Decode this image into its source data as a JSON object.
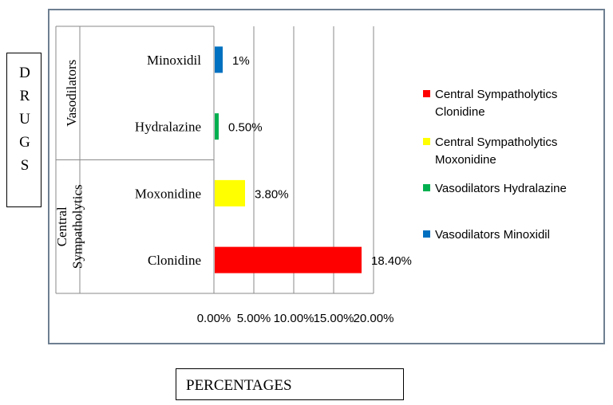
{
  "y_axis_title": "DRUGS",
  "x_axis_title": "PERCENTAGES",
  "chart_data": {
    "type": "bar",
    "orientation": "horizontal",
    "categories": [
      "Clonidine",
      "Moxonidine",
      "Hydralazine",
      "Minoxidil"
    ],
    "groups": [
      {
        "label": "Central Sympatholytics",
        "members": [
          "Clonidine",
          "Moxonidine"
        ]
      },
      {
        "label": "Vasodilators",
        "members": [
          "Hydralazine",
          "Minoxidil"
        ]
      }
    ],
    "values": [
      18.4,
      3.8,
      0.5,
      1
    ],
    "data_labels": [
      "18.40%",
      "3.80%",
      "0.50%",
      "1%"
    ],
    "colors": [
      "#ff0000",
      "#ffff00",
      "#00b050",
      "#0070c0"
    ],
    "xlim": [
      0,
      20
    ],
    "x_ticks": [
      0,
      5,
      10,
      15,
      20
    ],
    "x_tick_labels": [
      "0.00%",
      "5.00%",
      "10.00%",
      "15.00%",
      "20.00%"
    ],
    "grid": true,
    "legend_position": "right",
    "legend": [
      {
        "line1": "Central Sympatholytics",
        "line2": "Clonidine",
        "color": "#ff0000"
      },
      {
        "line1": "Central Sympatholytics",
        "line2": "Moxonidine",
        "color": "#ffff00"
      },
      {
        "line1": "Vasodilators Hydralazine",
        "line2": "",
        "color": "#00b050"
      },
      {
        "line1": "Vasodilators Minoxidil",
        "line2": "",
        "color": "#0070c0"
      }
    ]
  }
}
